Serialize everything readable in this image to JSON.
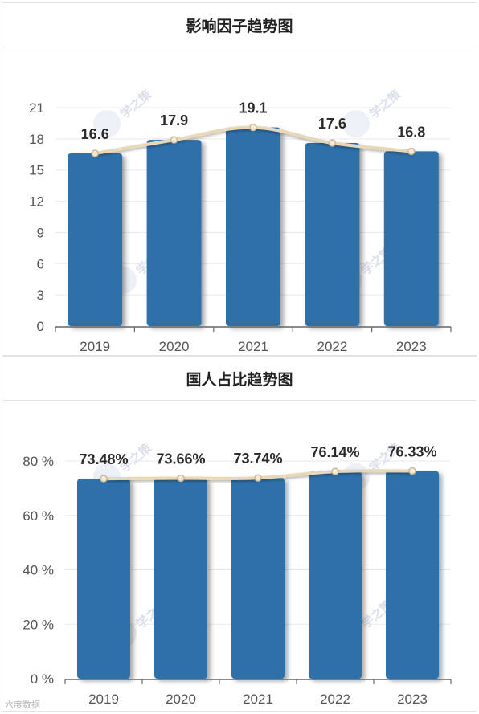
{
  "charts": [
    {
      "title": "影响因子趋势图",
      "chart_data": {
        "type": "bar",
        "categories": [
          "2019",
          "2020",
          "2021",
          "2022",
          "2023"
        ],
        "values": [
          16.6,
          17.9,
          19.1,
          17.6,
          16.8
        ],
        "data_labels": [
          "16.6",
          "17.9",
          "19.1",
          "17.6",
          "16.8"
        ],
        "yticks": [
          0,
          3,
          6,
          9,
          12,
          15,
          18,
          21
        ],
        "ytick_labels": [
          "0",
          "3",
          "6",
          "9",
          "12",
          "15",
          "18",
          "21"
        ],
        "ylim": [
          0,
          21
        ],
        "overlay_line": true,
        "grid": true,
        "bar_color": "#2e6faa",
        "line_color": "#e9d8b8"
      }
    },
    {
      "title": "国人占比趋势图",
      "chart_data": {
        "type": "bar",
        "categories": [
          "2019",
          "2020",
          "2021",
          "2022",
          "2023"
        ],
        "values": [
          73.48,
          73.66,
          73.74,
          76.14,
          76.33
        ],
        "data_labels": [
          "73.48%",
          "73.66%",
          "73.74%",
          "76.14%",
          "76.33%"
        ],
        "yticks": [
          0,
          20,
          40,
          60,
          80
        ],
        "ytick_labels": [
          "0 %",
          "20 %",
          "40 %",
          "60 %",
          "80 %"
        ],
        "ylim": [
          0,
          80
        ],
        "overlay_line": true,
        "grid": true,
        "bar_color": "#2e6faa",
        "line_color": "#e9d8b8"
      }
    }
  ],
  "watermark_text": "学之策",
  "footer_watermark": "六度数据"
}
